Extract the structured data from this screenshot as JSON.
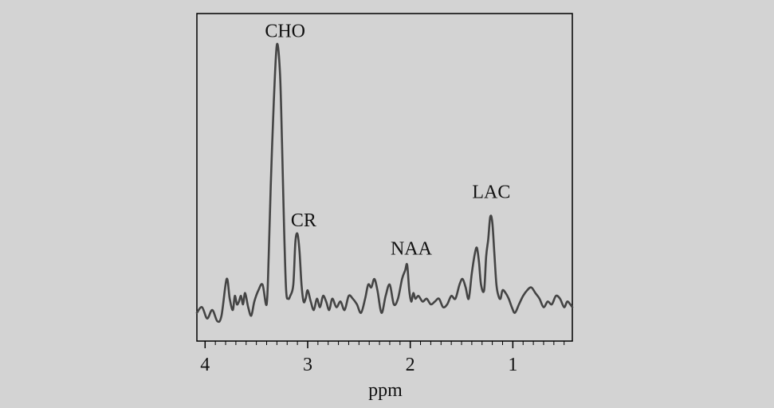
{
  "chart_data": {
    "type": "line",
    "title": "",
    "xlabel": "ppm",
    "ylabel": "",
    "xlim": [
      4.08,
      0.42
    ],
    "ylim": [
      0,
      1.16
    ],
    "x_reversed": true,
    "grid": false,
    "xticks": [
      {
        "value": 4,
        "label": "4"
      },
      {
        "value": 3,
        "label": "3"
      },
      {
        "value": 2,
        "label": "2"
      },
      {
        "value": 1,
        "label": "1"
      }
    ],
    "peak_labels": [
      {
        "text": "CHO",
        "x": 3.22,
        "y": 1.06
      },
      {
        "text": "CR",
        "x": 3.04,
        "y": 0.39
      },
      {
        "text": "NAA",
        "x": 1.99,
        "y": 0.29
      },
      {
        "text": "LAC",
        "x": 1.21,
        "y": 0.49
      }
    ],
    "series": [
      {
        "color": "#444444",
        "x": [
          4.08,
          4.03,
          3.98,
          3.93,
          3.88,
          3.84,
          3.79,
          3.76,
          3.73,
          3.71,
          3.69,
          3.67,
          3.65,
          3.63,
          3.61,
          3.58,
          3.55,
          3.52,
          3.48,
          3.44,
          3.4,
          3.38,
          3.36,
          3.33,
          3.3,
          3.27,
          3.25,
          3.23,
          3.21,
          3.19,
          3.17,
          3.14,
          3.12,
          3.1,
          3.08,
          3.06,
          3.04,
          3.02,
          3.0,
          2.97,
          2.94,
          2.91,
          2.88,
          2.85,
          2.82,
          2.79,
          2.76,
          2.72,
          2.68,
          2.64,
          2.6,
          2.56,
          2.52,
          2.48,
          2.44,
          2.41,
          2.38,
          2.35,
          2.32,
          2.28,
          2.24,
          2.2,
          2.16,
          2.12,
          2.08,
          2.05,
          2.03,
          2.01,
          1.99,
          1.97,
          1.95,
          1.92,
          1.88,
          1.84,
          1.8,
          1.76,
          1.72,
          1.68,
          1.64,
          1.6,
          1.56,
          1.52,
          1.49,
          1.46,
          1.43,
          1.4,
          1.37,
          1.35,
          1.33,
          1.31,
          1.28,
          1.26,
          1.24,
          1.22,
          1.2,
          1.18,
          1.16,
          1.14,
          1.12,
          1.1,
          1.07,
          1.04,
          1.01,
          0.98,
          0.94,
          0.9,
          0.86,
          0.82,
          0.78,
          0.74,
          0.7,
          0.66,
          0.62,
          0.58,
          0.54,
          0.5,
          0.47,
          0.44,
          0.42
        ],
        "y": [
          0.1,
          0.12,
          0.08,
          0.11,
          0.07,
          0.09,
          0.22,
          0.15,
          0.11,
          0.16,
          0.13,
          0.14,
          0.16,
          0.13,
          0.17,
          0.12,
          0.09,
          0.14,
          0.18,
          0.2,
          0.13,
          0.3,
          0.55,
          0.85,
          1.05,
          0.95,
          0.7,
          0.4,
          0.18,
          0.15,
          0.16,
          0.2,
          0.35,
          0.38,
          0.32,
          0.2,
          0.14,
          0.15,
          0.18,
          0.14,
          0.11,
          0.15,
          0.12,
          0.16,
          0.14,
          0.11,
          0.15,
          0.12,
          0.14,
          0.11,
          0.16,
          0.15,
          0.13,
          0.1,
          0.15,
          0.2,
          0.19,
          0.22,
          0.18,
          0.1,
          0.16,
          0.2,
          0.13,
          0.15,
          0.22,
          0.25,
          0.27,
          0.18,
          0.14,
          0.17,
          0.15,
          0.16,
          0.14,
          0.15,
          0.13,
          0.14,
          0.15,
          0.12,
          0.13,
          0.16,
          0.15,
          0.2,
          0.22,
          0.19,
          0.15,
          0.24,
          0.31,
          0.33,
          0.28,
          0.2,
          0.18,
          0.3,
          0.36,
          0.44,
          0.42,
          0.31,
          0.2,
          0.16,
          0.15,
          0.18,
          0.17,
          0.15,
          0.12,
          0.1,
          0.13,
          0.16,
          0.18,
          0.19,
          0.17,
          0.15,
          0.12,
          0.14,
          0.13,
          0.16,
          0.15,
          0.12,
          0.14,
          0.13,
          0.12
        ]
      }
    ]
  }
}
